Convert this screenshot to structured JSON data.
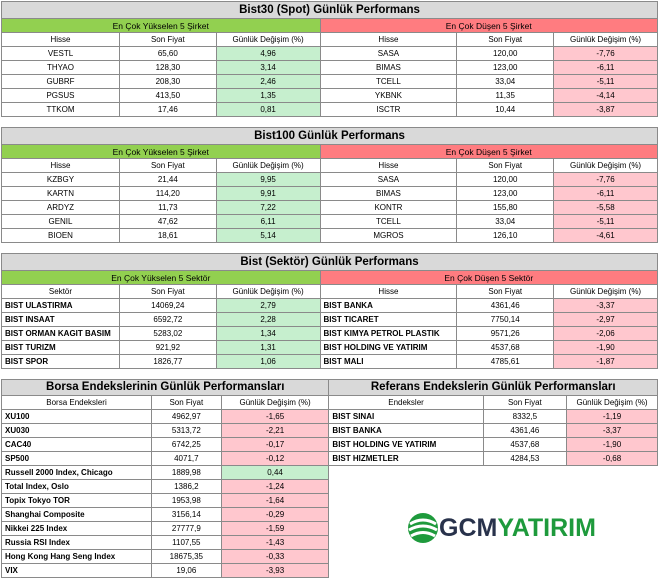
{
  "colors": {
    "up_header": "#92d050",
    "down_header": "#ff7c80",
    "up_cell": "#c6efce",
    "down_cell": "#ffc7ce",
    "title_bg": "#d9d9d9"
  },
  "bist30": {
    "title": "Bist30 (Spot) Günlük Performans",
    "up_title": "En Çok Yükselen 5 Şirket",
    "down_title": "En Çok Düşen 5 Şirket",
    "cols": [
      "Hisse",
      "Son Fiyat",
      "Günlük Değişim (%)"
    ],
    "up": [
      {
        "name": "VESTL",
        "price": "65,60",
        "chg": "4,96"
      },
      {
        "name": "THYAO",
        "price": "128,30",
        "chg": "3,14"
      },
      {
        "name": "GUBRF",
        "price": "208,30",
        "chg": "2,46"
      },
      {
        "name": "PGSUS",
        "price": "413,50",
        "chg": "1,35"
      },
      {
        "name": "TTKOM",
        "price": "17,46",
        "chg": "0,81"
      }
    ],
    "down": [
      {
        "name": "SASA",
        "price": "120,00",
        "chg": "-7,76"
      },
      {
        "name": "BIMAS",
        "price": "123,00",
        "chg": "-6,11"
      },
      {
        "name": "TCELL",
        "price": "33,04",
        "chg": "-5,11"
      },
      {
        "name": "YKBNK",
        "price": "11,35",
        "chg": "-4,14"
      },
      {
        "name": "ISCTR",
        "price": "10,44",
        "chg": "-3,87"
      }
    ]
  },
  "bist100": {
    "title": "Bist100 Günlük Performans",
    "up_title": "En Çok Yükselen 5 Şirket",
    "down_title": "En Çok Düşen 5 Şirket",
    "cols": [
      "Hisse",
      "Son Fiyat",
      "Günlük Değişim (%)"
    ],
    "up": [
      {
        "name": "KZBGY",
        "price": "21,44",
        "chg": "9,95"
      },
      {
        "name": "KARTN",
        "price": "114,20",
        "chg": "9,91"
      },
      {
        "name": "ARDYZ",
        "price": "11,73",
        "chg": "7,22"
      },
      {
        "name": "GENIL",
        "price": "47,62",
        "chg": "6,11"
      },
      {
        "name": "BIOEN",
        "price": "18,61",
        "chg": "5,14"
      }
    ],
    "down": [
      {
        "name": "SASA",
        "price": "120,00",
        "chg": "-7,76"
      },
      {
        "name": "BIMAS",
        "price": "123,00",
        "chg": "-6,11"
      },
      {
        "name": "KONTR",
        "price": "155,80",
        "chg": "-5,58"
      },
      {
        "name": "TCELL",
        "price": "33,04",
        "chg": "-5,11"
      },
      {
        "name": "MGROS",
        "price": "126,10",
        "chg": "-4,61"
      }
    ]
  },
  "sector": {
    "title": "Bist (Sektör) Günlük Performans",
    "up_title": "En Çok Yükselen 5 Sektör",
    "down_title": "En Çok Düşen 5 Sektör",
    "cols_left": [
      "Sektör",
      "Son Fiyat",
      "Günlük Değişim (%)"
    ],
    "cols_right": [
      "Hisse",
      "Son Fiyat",
      "Günlük Değişim (%)"
    ],
    "up": [
      {
        "name": "BIST ULASTIRMA",
        "price": "14069,24",
        "chg": "2,79"
      },
      {
        "name": "BIST INSAAT",
        "price": "6592,72",
        "chg": "2,28"
      },
      {
        "name": "BIST ORMAN KAGIT BASIM",
        "price": "5283,02",
        "chg": "1,34"
      },
      {
        "name": "BIST TURIZM",
        "price": "921,92",
        "chg": "1,31"
      },
      {
        "name": "BIST SPOR",
        "price": "1826,77",
        "chg": "1,06"
      }
    ],
    "down": [
      {
        "name": "BIST BANKA",
        "price": "4361,46",
        "chg": "-3,37"
      },
      {
        "name": "BIST TICARET",
        "price": "7750,14",
        "chg": "-2,97"
      },
      {
        "name": "BIST KIMYA PETROL PLASTIK",
        "price": "9571,26",
        "chg": "-2,06"
      },
      {
        "name": "BIST HOLDING VE YATIRIM",
        "price": "4537,68",
        "chg": "-1,90"
      },
      {
        "name": "BIST MALI",
        "price": "4785,61",
        "chg": "-1,87"
      }
    ]
  },
  "indices": {
    "left_title": "Borsa Endekslerinin Günlük Performansları",
    "right_title": "Referans Endekslerin  Günlük Performansları",
    "cols_left": [
      "Borsa Endeksleri",
      "Son Fiyat",
      "Günlük Değişim (%)"
    ],
    "cols_right": [
      "Endeksler",
      "Son Fiyat",
      "Günlük Değişim (%)"
    ],
    "left": [
      {
        "name": "XU100",
        "price": "4962,97",
        "chg": "-1,65",
        "up": false
      },
      {
        "name": "XU030",
        "price": "5313,72",
        "chg": "-2,21",
        "up": false
      },
      {
        "name": "CAC40",
        "price": "6742,25",
        "chg": "-0,17",
        "up": false
      },
      {
        "name": "SP500",
        "price": "4071,7",
        "chg": "-0,12",
        "up": false
      },
      {
        "name": "Russell 2000 Index, Chicago",
        "price": "1889,98",
        "chg": "0,44",
        "up": true
      },
      {
        "name": "Total Index, Oslo",
        "price": "1386,2",
        "chg": "-1,24",
        "up": false
      },
      {
        "name": "Topix Tokyo TOR",
        "price": "1953,98",
        "chg": "-1,64",
        "up": false
      },
      {
        "name": "Shanghai Composite",
        "price": "3156,14",
        "chg": "-0,29",
        "up": false
      },
      {
        "name": "Nikkei 225 Index",
        "price": "27777,9",
        "chg": "-1,59",
        "up": false
      },
      {
        "name": "Russia RSI Index",
        "price": "1107,55",
        "chg": "-1,43",
        "up": false
      },
      {
        "name": "Hong Kong Hang Seng Index",
        "price": "18675,35",
        "chg": "-0,33",
        "up": false
      },
      {
        "name": "VIX",
        "price": "19,06",
        "chg": "-3,93",
        "up": false
      }
    ],
    "right": [
      {
        "name": "BIST SINAI",
        "price": "8332,5",
        "chg": "-1,19"
      },
      {
        "name": "BIST BANKA",
        "price": "4361,46",
        "chg": "-3,37"
      },
      {
        "name": "BIST HOLDING VE YATIRIM",
        "price": "4537,68",
        "chg": "-1,90"
      },
      {
        "name": "BIST HIZMETLER",
        "price": "4284,53",
        "chg": "-0,68"
      }
    ]
  },
  "logo": {
    "part1": "GCM",
    "part2": "YATIRIM",
    "icon": "gcm-globe-icon"
  }
}
